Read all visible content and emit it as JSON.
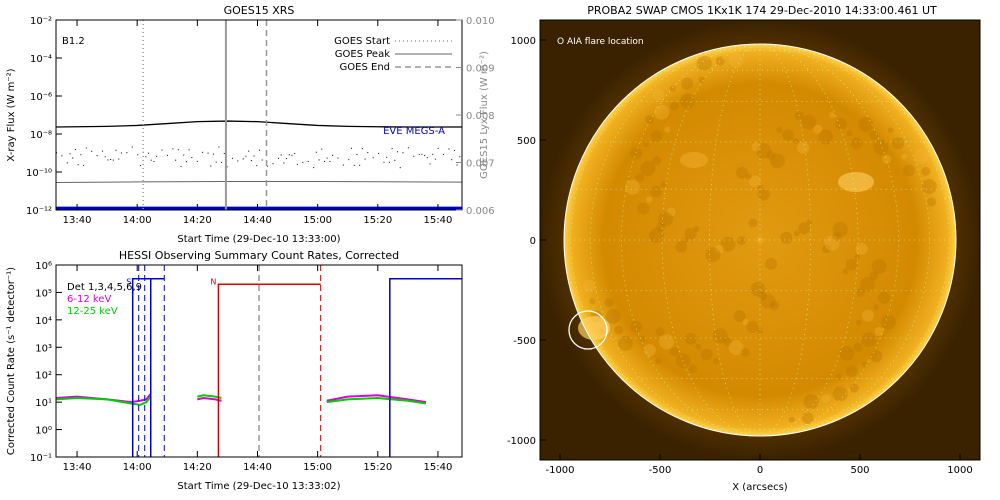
{
  "chart_data": [
    {
      "type": "line",
      "title": "GOES15 XRS",
      "xlabel": "Start Time (29-Dec-10 13:33:00)",
      "ylabel": "X-ray Flux (W m⁻²)",
      "ylabel_right": "GOES15 Lyx Flux (W m⁻²)",
      "class_label": "B1.2",
      "x_ticks": [
        "13:40",
        "14:00",
        "14:20",
        "14:40",
        "15:00",
        "15:20",
        "15:40"
      ],
      "x_tick_minutes": [
        40,
        60,
        80,
        100,
        120,
        140,
        160
      ],
      "xlim_minutes": [
        33,
        168
      ],
      "ylim_log": [
        -12,
        -2
      ],
      "y_ticks": [
        "10⁻¹²",
        "10⁻¹⁰",
        "10⁻⁸",
        "10⁻⁶",
        "10⁻⁴",
        "10⁻²"
      ],
      "y_tick_exp": [
        -12,
        -10,
        -8,
        -6,
        -4,
        -2
      ],
      "y2lim": [
        0.006,
        0.01
      ],
      "y2_ticks": [
        "0.006",
        "0.007",
        "0.008",
        "0.009",
        "0.010"
      ],
      "y2_tick_values": [
        0.006,
        0.007,
        0.008,
        0.009,
        0.01
      ],
      "legend": [
        {
          "label": "GOES Start",
          "style": "dotted"
        },
        {
          "label": "GOES Peak",
          "style": "solid"
        },
        {
          "label": "GOES End",
          "style": "dashed"
        }
      ],
      "markers_minutes": {
        "start": 62,
        "peak": 89.5,
        "end": 103
      },
      "eve_label": "EVE MEGS-A",
      "colors": {
        "eve": "#0000cc",
        "long": "#000000",
        "short": "#666666",
        "markers": "#999999"
      },
      "series": [
        {
          "name": "",
          "color": "#000000",
          "x_minutes": [
            33,
            50,
            60,
            70,
            80,
            90,
            100,
            110,
            120,
            130,
            140,
            150,
            160,
            168
          ],
          "log_values": [
            -7.63,
            -7.6,
            -7.55,
            -7.45,
            -7.35,
            -7.32,
            -7.35,
            -7.45,
            -7.55,
            -7.6,
            -7.62,
            -7.63,
            -7.63,
            -7.63
          ]
        },
        {
          "name": "",
          "color": "#666666",
          "x_minutes": [
            33,
            60,
            90,
            120,
            150,
            168
          ],
          "log_values": [
            -10.55,
            -10.52,
            -10.5,
            -10.5,
            -10.52,
            -10.53
          ]
        },
        {
          "name": "EVE MEGS-A",
          "color": "#0000cc",
          "x_minutes": [
            33,
            168
          ],
          "log_values": [
            -11.9,
            -11.9
          ]
        }
      ]
    },
    {
      "type": "line",
      "title": "HESSI Observing Summary Count Rates, Corrected",
      "xlabel": "Start Time (29-Dec-10 13:33:02)",
      "ylabel": "Corrected Count Rate (s⁻¹ detector⁻¹)",
      "x_ticks": [
        "13:40",
        "14:00",
        "14:20",
        "14:40",
        "15:00",
        "15:20",
        "15:40"
      ],
      "x_tick_minutes": [
        40,
        60,
        80,
        100,
        120,
        140,
        160
      ],
      "xlim_minutes": [
        33,
        168
      ],
      "ylim_log": [
        -1,
        6
      ],
      "y_ticks": [
        "10⁻¹",
        "10⁰",
        "10¹",
        "10²",
        "10³",
        "10⁴",
        "10⁵",
        "10⁶"
      ],
      "y_tick_exp": [
        -1,
        0,
        1,
        2,
        3,
        4,
        5,
        6
      ],
      "legend": [
        {
          "label": "Det 1,3,4,5,6,9",
          "color": "#000000"
        },
        {
          "label": "6-12 keV",
          "color": "#dd00dd"
        },
        {
          "label": "12-25 keV",
          "color": "#00cc00"
        }
      ],
      "flags": [
        {
          "label": "S",
          "color": "#0000cc",
          "x_minutes": 59
        },
        {
          "label": "N",
          "color": "#dd0000",
          "x_minutes": 87
        }
      ],
      "colors": {
        "saa": "#0000cc",
        "night": "#dd0000",
        "peak": "#999999"
      },
      "series": [
        {
          "name": "6-12 keV",
          "color": "#dd00dd",
          "segments": [
            {
              "x_minutes": [
                33,
                40,
                50,
                58,
                61,
                63,
                64.5
              ],
              "log_values": [
                1.15,
                1.2,
                1.1,
                1.0,
                1.05,
                1.1,
                1.3
              ]
            },
            {
              "x_minutes": [
                80,
                82,
                86,
                88
              ],
              "log_values": [
                1.1,
                1.15,
                1.1,
                1.05
              ]
            },
            {
              "x_minutes": [
                123,
                130,
                140,
                150,
                156
              ],
              "log_values": [
                1.05,
                1.2,
                1.25,
                1.1,
                1.0
              ]
            }
          ]
        },
        {
          "name": "12-25 keV",
          "color": "#00cc00",
          "segments": [
            {
              "x_minutes": [
                33,
                40,
                50,
                58,
                61,
                63,
                64.5
              ],
              "log_values": [
                1.1,
                1.15,
                1.1,
                0.95,
                0.9,
                1.0,
                1.2
              ]
            },
            {
              "x_minutes": [
                80,
                82,
                86,
                88
              ],
              "log_values": [
                1.2,
                1.25,
                1.2,
                1.15
              ]
            },
            {
              "x_minutes": [
                123,
                130,
                140,
                150,
                156
              ],
              "log_values": [
                1.0,
                1.1,
                1.15,
                1.05,
                0.95
              ]
            }
          ]
        }
      ],
      "saa_level_log": 5.5,
      "night_level_log": 5.3
    },
    {
      "type": "scatter",
      "title": "PROBA2 SWAP CMOS 1Kx1K 174 29-Dec-2010 14:33:00.461 UT",
      "xlabel": "X (arcsecs)",
      "ylabel": "",
      "legend_label": "O AIA flare location",
      "xlim": [
        -1100,
        1100
      ],
      "ylim": [
        -1100,
        1100
      ],
      "x_ticks": [
        "-1000",
        "-500",
        "0",
        "500",
        "1000"
      ],
      "x_tick_values": [
        -1000,
        -500,
        0,
        500,
        1000
      ],
      "y_ticks": [
        "-1000",
        "-500",
        "0",
        "500",
        "1000"
      ],
      "y_tick_values": [
        -1000,
        -500,
        0,
        500,
        1000
      ],
      "solar_radius_arcsec": 980,
      "flare": {
        "x": -860,
        "y": -450
      },
      "colors": {
        "disk": "#d28a00",
        "corona": "#5a3500",
        "limb": "#ffffff",
        "grid": "#c8ff9a",
        "flare": "#ffffff"
      }
    }
  ]
}
